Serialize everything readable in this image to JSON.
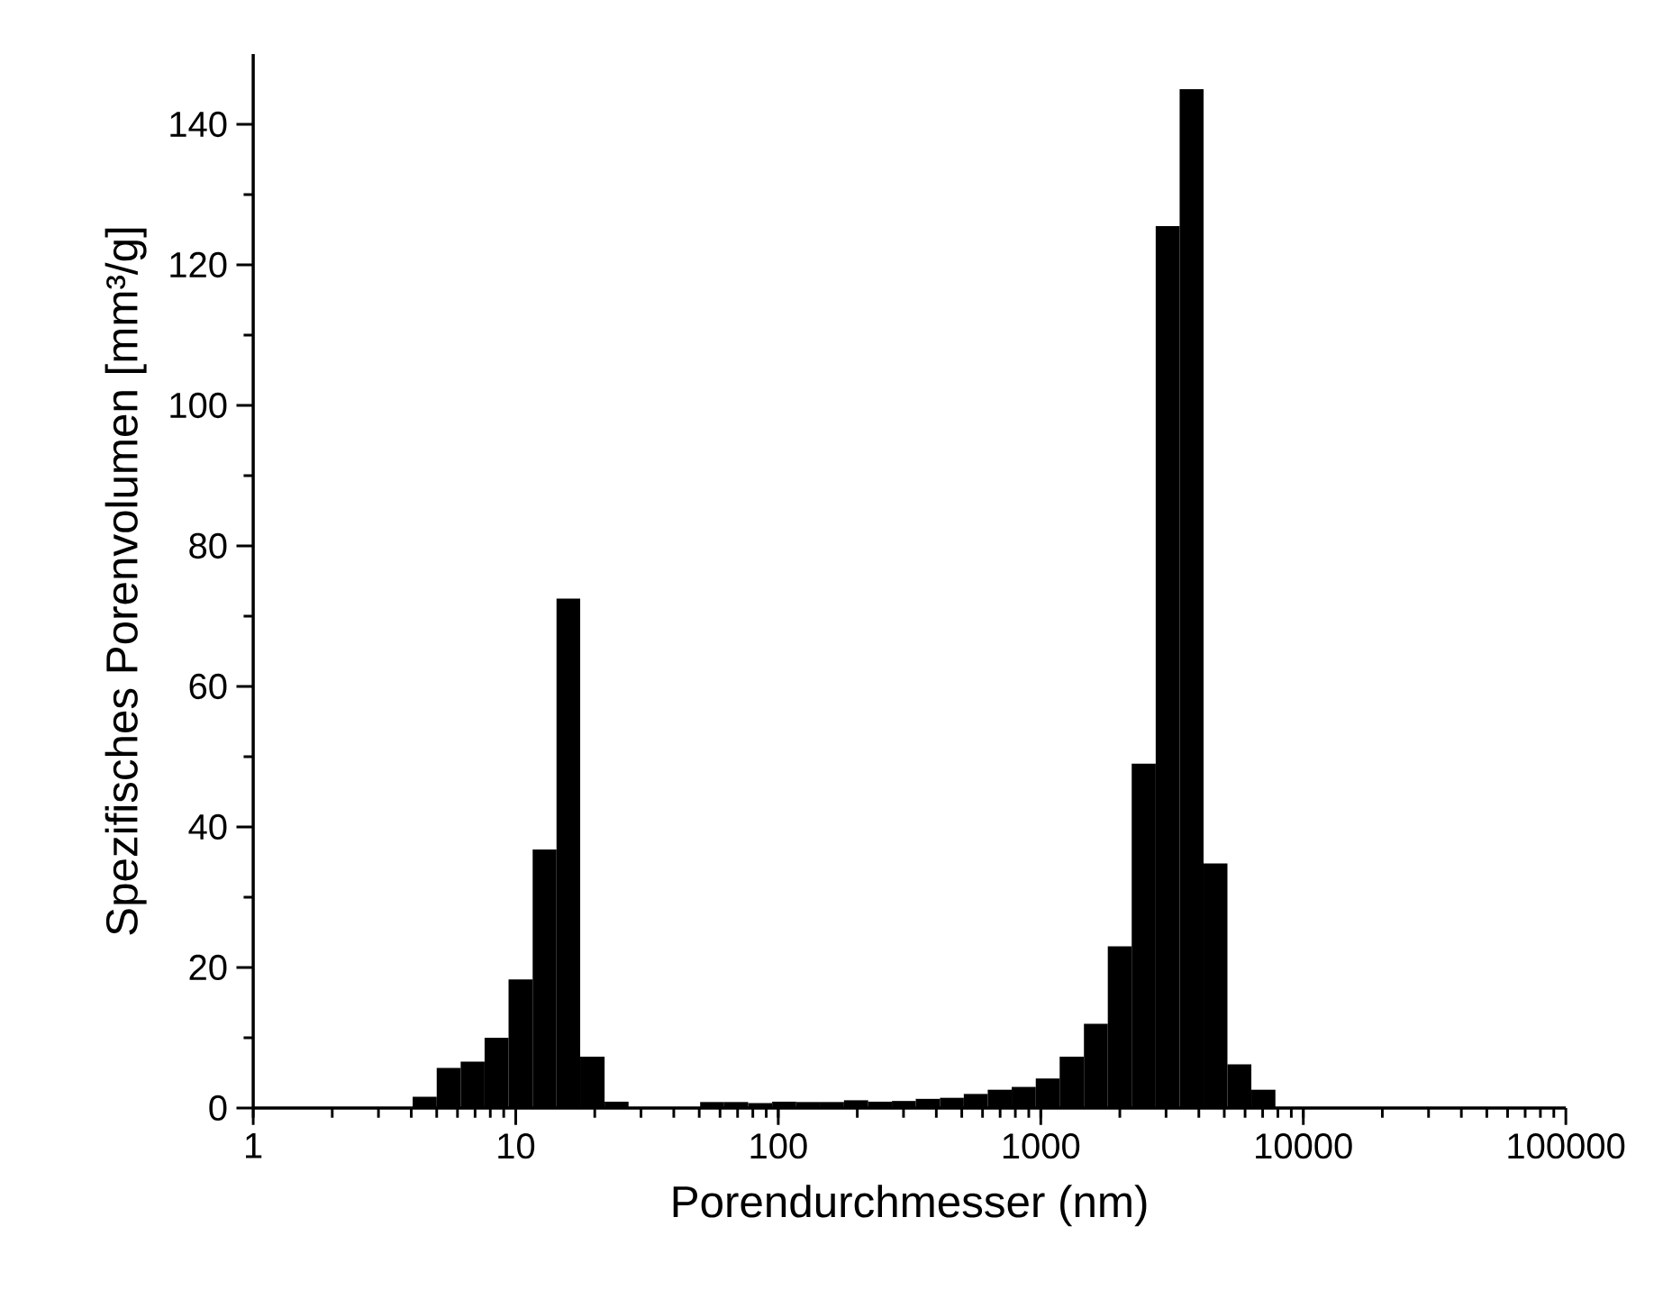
{
  "chart_data": {
    "type": "histogram",
    "xlabel": "Porendurchmesser (nm)",
    "ylabel": "Spezifisches Porenvolumen [mm³/g]",
    "bins": [
      4.05,
      5.0,
      6.17,
      7.61,
      9.39,
      11.6,
      14.3,
      17.6,
      21.8,
      26.9,
      33.1,
      40.9,
      50.4,
      62.2,
      76.8,
      94.8,
      117,
      144,
      178,
      220,
      271,
      334,
      413,
      509,
      628,
      775,
      957,
      1180,
      1460,
      1800,
      2220,
      2740,
      3380,
      4170,
      5140,
      6340,
      7830
    ],
    "values": [
      1.6,
      5.7,
      6.6,
      10.0,
      18.3,
      36.8,
      72.5,
      7.3,
      0.9,
      0,
      0,
      0,
      0.85,
      0.85,
      0.7,
      0.9,
      0.85,
      0.85,
      1.1,
      0.9,
      1.0,
      1.3,
      1.45,
      2.0,
      2.6,
      3.0,
      4.2,
      7.3,
      12.0,
      23.0,
      49.0,
      125.5,
      145.0,
      34.8,
      6.2,
      2.6
    ],
    "color": "#000000",
    "log": "x",
    "xlim": [
      1,
      100000
    ],
    "xticks": [
      1,
      10,
      100,
      1000,
      10000,
      100000
    ],
    "ylim": [
      0,
      150
    ],
    "yticks": [
      0,
      20,
      40,
      60,
      80,
      100,
      120,
      140
    ]
  }
}
